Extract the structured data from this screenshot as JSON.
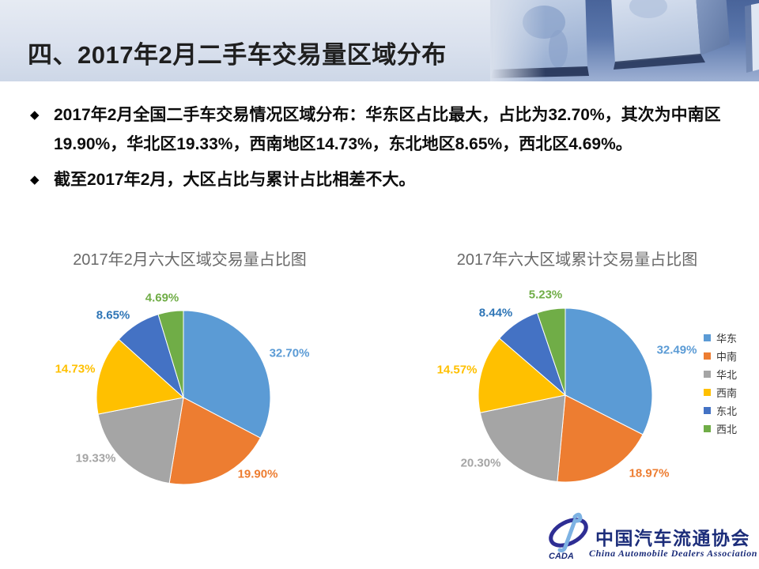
{
  "header": {
    "title": "四、2017年2月二手车交易量区域分布"
  },
  "bullets": [
    "2017年2月全国二手车交易情况区域分布：华东区占比最大，占比为32.70%，其次为中南区19.90%，华北区19.33%，西南地区14.73%，东北地区8.65%，西北区4.69%。",
    "截至2017年2月，大区占比与累计占比相差不大。"
  ],
  "bullet_marker": "◆",
  "chart_data": [
    {
      "type": "pie",
      "title": "2017年2月六大区域交易量占比图",
      "categories": [
        "华东",
        "中南",
        "华北",
        "西南",
        "东北",
        "西北"
      ],
      "values": [
        32.7,
        19.9,
        19.33,
        14.73,
        8.65,
        4.69
      ],
      "data_labels": [
        "32.70%",
        "19.90%",
        "19.33%",
        "14.73%",
        "8.65%",
        "4.69%"
      ],
      "colors": [
        "#5B9BD5",
        "#ED7D31",
        "#A5A5A5",
        "#FFC000",
        "#4472C4",
        "#70AD47"
      ],
      "label_colors": [
        "#5B9BD5",
        "#ED7D31",
        "#A5A5A5",
        "#FFC000",
        "#2E75B6",
        "#70AD47"
      ],
      "legend": "none",
      "start_angle_deg": 0,
      "direction": "clockwise"
    },
    {
      "type": "pie",
      "title": "2017年六大区域累计交易量占比图",
      "categories": [
        "华东",
        "中南",
        "华北",
        "西南",
        "东北",
        "西北"
      ],
      "values": [
        32.49,
        18.97,
        20.3,
        14.57,
        8.44,
        5.23
      ],
      "data_labels": [
        "32.49%",
        "18.97%",
        "20.30%",
        "14.57%",
        "8.44%",
        "5.23%"
      ],
      "colors": [
        "#5B9BD5",
        "#ED7D31",
        "#A5A5A5",
        "#FFC000",
        "#4472C4",
        "#70AD47"
      ],
      "label_colors": [
        "#5B9BD5",
        "#ED7D31",
        "#A5A5A5",
        "#FFC000",
        "#2E75B6",
        "#70AD47"
      ],
      "legend": "right",
      "start_angle_deg": 0,
      "direction": "clockwise"
    }
  ],
  "footer": {
    "org_cn": "中国汽车流通协会",
    "org_en": "China Automobile Dealers Association",
    "logo_text": "CADA"
  }
}
